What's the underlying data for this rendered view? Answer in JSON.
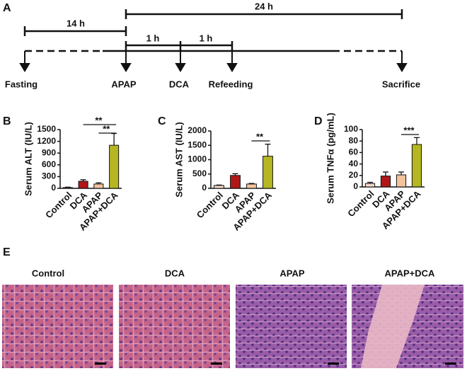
{
  "panels": {
    "a": "A",
    "b": "B",
    "c": "C",
    "d": "D",
    "e": "E"
  },
  "timeline": {
    "spans": [
      "24 h",
      "14 h",
      "1 h",
      "1 h"
    ],
    "events": [
      "Fasting",
      "APAP",
      "DCA",
      "Refeeding",
      "Sacrifice"
    ]
  },
  "chart_data": [
    {
      "type": "bar",
      "ylabel": "Serum ALT (IU/L)",
      "categories": [
        "Control",
        "DCA",
        "APAP",
        "APAP+DCA"
      ],
      "values": [
        20,
        180,
        110,
        1100
      ],
      "errors": [
        10,
        40,
        30,
        300
      ],
      "colors": [
        "#f6d9c9",
        "#b01818",
        "#f3c49c",
        "#b5b621"
      ],
      "ylim": [
        0,
        1500
      ],
      "yticks": [
        0,
        300,
        600,
        900,
        1200,
        1500
      ],
      "annotations": [
        "**",
        "**"
      ]
    },
    {
      "type": "bar",
      "ylabel": "Serum AST (IU/L)",
      "categories": [
        "Control",
        "DCA",
        "APAP",
        "APAP+DCA"
      ],
      "values": [
        100,
        450,
        150,
        1120
      ],
      "errors": [
        15,
        60,
        20,
        420
      ],
      "colors": [
        "#f6d9c9",
        "#b01818",
        "#f3c49c",
        "#b5b621"
      ],
      "ylim": [
        0,
        2000
      ],
      "yticks": [
        0,
        500,
        1000,
        1500,
        2000
      ],
      "annotations": [
        "**"
      ]
    },
    {
      "type": "bar",
      "ylabel": "Serum TNFα (pg/mL)",
      "categories": [
        "Control",
        "DCA",
        "APAP",
        "APAP+DCA"
      ],
      "values": [
        6,
        19,
        21,
        74
      ],
      "errors": [
        2,
        7,
        5,
        12
      ],
      "colors": [
        "#f6d9c9",
        "#b01818",
        "#f3c49c",
        "#b5b621"
      ],
      "ylim": [
        0,
        100
      ],
      "yticks": [
        0,
        20,
        40,
        60,
        80,
        100
      ],
      "annotations": [
        "***"
      ]
    }
  ],
  "histology": {
    "titles": [
      "Control",
      "DCA",
      "APAP",
      "APAP+DCA"
    ]
  }
}
